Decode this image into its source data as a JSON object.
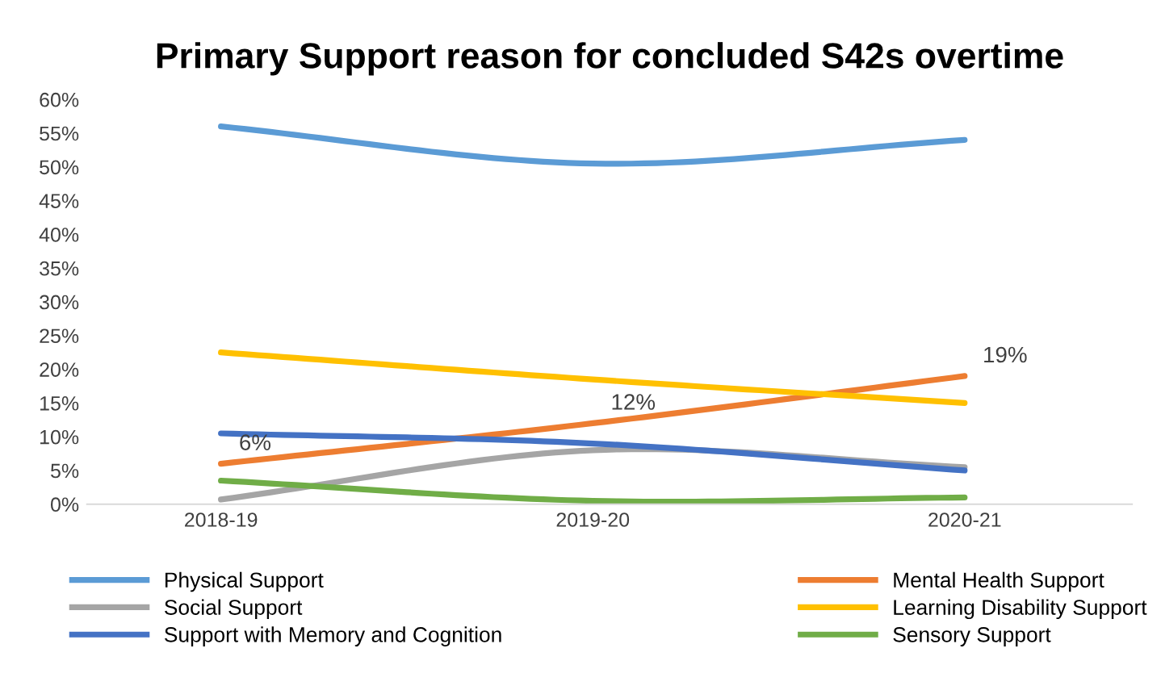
{
  "chart_data": {
    "type": "line",
    "title": "Primary Support reason for concluded S42s overtime",
    "categories": [
      "2018-19",
      "2019-20",
      "2020-21"
    ],
    "series": [
      {
        "name": "Physical Support",
        "color": "#5b9bd5",
        "values": [
          56,
          50.5,
          54
        ]
      },
      {
        "name": "Mental Health Support",
        "color": "#ed7d31",
        "values": [
          6,
          12,
          19
        ],
        "value_labels": [
          "6%",
          "12%",
          "19%"
        ]
      },
      {
        "name": "Social Support",
        "color": "#a5a5a5",
        "values": [
          0.7,
          8,
          5.5
        ]
      },
      {
        "name": "Learning Disability Support",
        "color": "#ffc000",
        "values": [
          22.5,
          18.5,
          15
        ]
      },
      {
        "name": "Support with Memory and Cognition",
        "color": "#4472c4",
        "values": [
          10.5,
          9,
          5
        ]
      },
      {
        "name": "Sensory Support",
        "color": "#70ad47",
        "values": [
          3.5,
          0.5,
          1
        ]
      }
    ],
    "ylim": [
      0,
      60
    ],
    "yticks": [
      {
        "value": 0,
        "label": "0%"
      },
      {
        "value": 5,
        "label": "5%"
      },
      {
        "value": 10,
        "label": "10%"
      },
      {
        "value": 15,
        "label": "15%"
      },
      {
        "value": 20,
        "label": "20%"
      },
      {
        "value": 25,
        "label": "25%"
      },
      {
        "value": 30,
        "label": "30%"
      },
      {
        "value": 35,
        "label": "35%"
      },
      {
        "value": 40,
        "label": "40%"
      },
      {
        "value": 45,
        "label": "45%"
      },
      {
        "value": 50,
        "label": "50%"
      },
      {
        "value": 55,
        "label": "55%"
      },
      {
        "value": 60,
        "label": "60%"
      }
    ],
    "grid": false,
    "legend": "bottom",
    "marker": "none",
    "line_style": "solid"
  }
}
